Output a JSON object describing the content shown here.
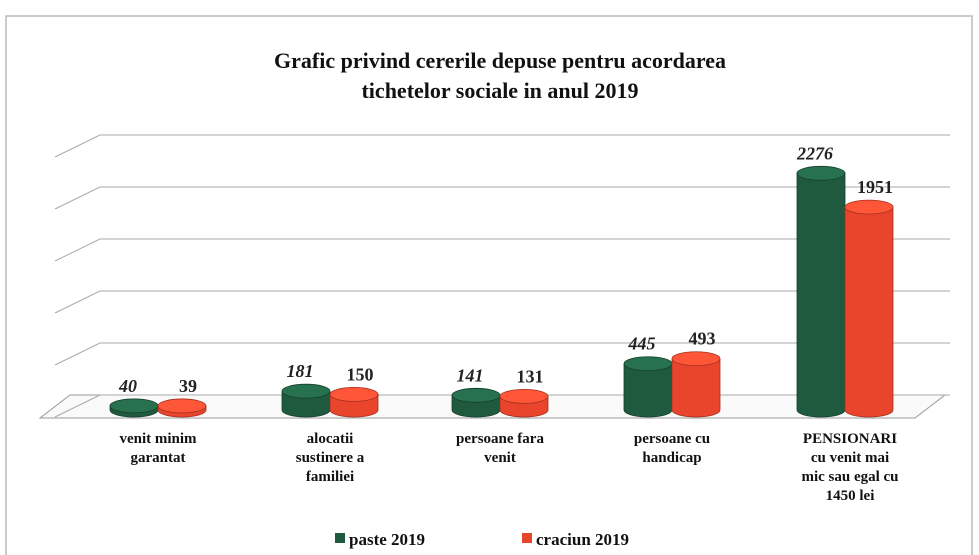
{
  "chart_data": {
    "type": "bar3d",
    "title": "Grafic privind cererile depuse pentru acordarea\ntichetelor sociale in anul 2019",
    "categories": [
      "venit minim\ngarantat",
      "alocatii\nsustinere a\nfamiliei",
      "persoane fara\nvenit",
      "persoane cu\nhandicap",
      "PENSIONARI\ncu venit mai\nmic sau egal cu\n1450 lei"
    ],
    "series": [
      {
        "name": "paste 2019",
        "color": "#1f5a3e",
        "values": [
          40,
          181,
          141,
          445,
          2276
        ]
      },
      {
        "name": "craciun 2019",
        "color": "#e8452c",
        "values": [
          39,
          150,
          131,
          493,
          1951
        ]
      }
    ],
    "ylim": [
      0,
      2500
    ],
    "yticks": [
      0,
      500,
      1000,
      1500,
      2000,
      2500
    ],
    "grid": true
  }
}
